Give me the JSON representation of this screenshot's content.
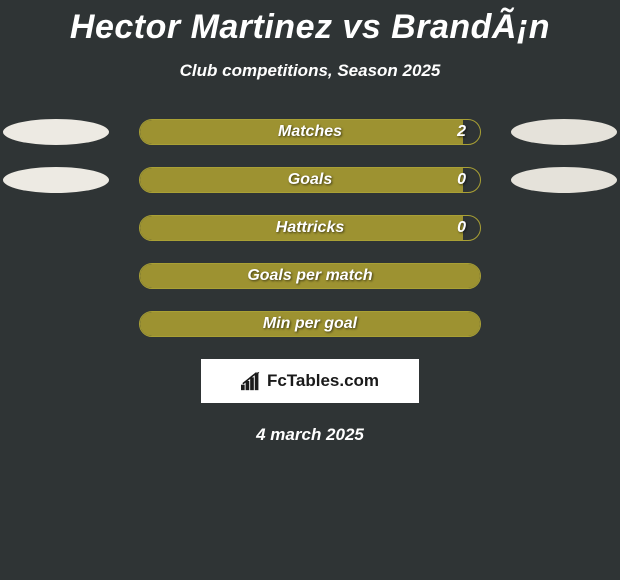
{
  "title": "Hector Martinez vs BrandÃ¡n",
  "subtitle": "Club competitions, Season 2025",
  "date": "4 march 2025",
  "colors": {
    "background": "#2f3435",
    "ellipse_left": "#edeae3",
    "ellipse_right": "#e5e2da",
    "bar_border": "#a9a035",
    "bar_fill": "#9d9231",
    "text": "#ffffff",
    "logo_bg": "#ffffff",
    "logo_text": "#1a1a1a"
  },
  "logo": {
    "text": "FcTables.com"
  },
  "rows": [
    {
      "label": "Matches",
      "value": "2",
      "fill_pct": 95,
      "show_value": true,
      "show_left_ellipse": true,
      "show_right_ellipse": true
    },
    {
      "label": "Goals",
      "value": "0",
      "fill_pct": 95,
      "show_value": true,
      "show_left_ellipse": true,
      "show_right_ellipse": true
    },
    {
      "label": "Hattricks",
      "value": "0",
      "fill_pct": 95,
      "show_value": true,
      "show_left_ellipse": false,
      "show_right_ellipse": false
    },
    {
      "label": "Goals per match",
      "value": "",
      "fill_pct": 100,
      "show_value": false,
      "show_left_ellipse": false,
      "show_right_ellipse": false
    },
    {
      "label": "Min per goal",
      "value": "",
      "fill_pct": 100,
      "show_value": false,
      "show_left_ellipse": false,
      "show_right_ellipse": false
    }
  ]
}
